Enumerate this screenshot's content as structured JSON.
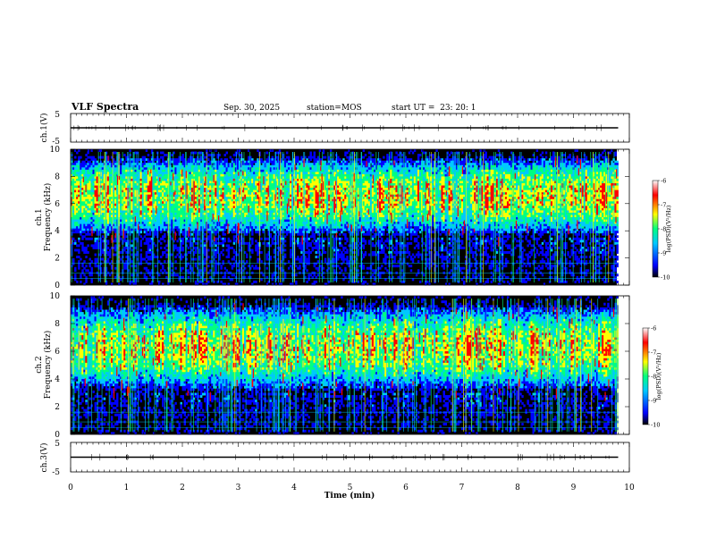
{
  "header": {
    "title": "VLF Spectra",
    "date": "Sep. 30, 2025",
    "station": "station=MOS",
    "start_ut": "start UT =  23: 20: 1"
  },
  "chart_data": [
    {
      "type": "line",
      "title": "",
      "ylabel": "ch.1(V)",
      "ylim": [
        -5,
        5
      ],
      "y_ticks": [
        "5",
        "-5"
      ],
      "xlim": [
        0,
        10
      ],
      "series": [
        {
          "x": [
            0,
            9.8
          ],
          "y": [
            0,
            0
          ]
        }
      ]
    },
    {
      "type": "heatmap",
      "ylabel": "ch.1\nFrequency (kHz)",
      "ylabel_channel": "ch.1",
      "ylabel_freq": "Frequency (kHz)",
      "xlim": [
        0,
        10
      ],
      "ylim": [
        0,
        10
      ],
      "y_ticks": [
        "0",
        "2",
        "4",
        "6",
        "8",
        "10"
      ],
      "data_xlim": [
        0,
        9.8
      ],
      "band_khz": [
        3.5,
        9.6
      ],
      "colorbar": {
        "label": "log(PSD)(V²/Hz)",
        "range": [
          -10,
          -6
        ],
        "ticks": [
          "-6",
          "-7",
          "-8",
          "-9",
          "-10"
        ]
      }
    },
    {
      "type": "heatmap",
      "ylabel": "ch.2\nFrequency (kHz)",
      "ylabel_channel": "ch.2",
      "ylabel_freq": "Frequency (kHz)",
      "xlim": [
        0,
        10
      ],
      "ylim": [
        0,
        10
      ],
      "y_ticks": [
        "0",
        "2",
        "4",
        "6",
        "8",
        "10"
      ],
      "data_xlim": [
        0,
        9.8
      ],
      "band_khz": [
        3,
        9.5
      ],
      "colorbar": {
        "label": "log(PSD)(V²/Hz)",
        "range": [
          -10,
          -6
        ],
        "ticks": [
          "-6",
          "-7",
          "-8",
          "-9",
          "-10"
        ]
      }
    },
    {
      "type": "line",
      "ylabel": "ch.3(V)",
      "ylim": [
        -5,
        5
      ],
      "y_ticks": [
        "5",
        "-5"
      ],
      "xlim": [
        0,
        10
      ],
      "xlabel": "Time (min)",
      "x_ticks": [
        "0",
        "1",
        "2",
        "3",
        "4",
        "5",
        "6",
        "7",
        "8",
        "9",
        "10"
      ],
      "series": [
        {
          "x": [
            0,
            9.8
          ],
          "y": [
            0,
            0
          ]
        }
      ]
    }
  ],
  "colors": {
    "background": "#000000",
    "frame": "#000000",
    "colormap": [
      "#000000",
      "#0000ff",
      "#00c8ff",
      "#00ff80",
      "#ffff00",
      "#ff0000",
      "#ffffff"
    ]
  }
}
